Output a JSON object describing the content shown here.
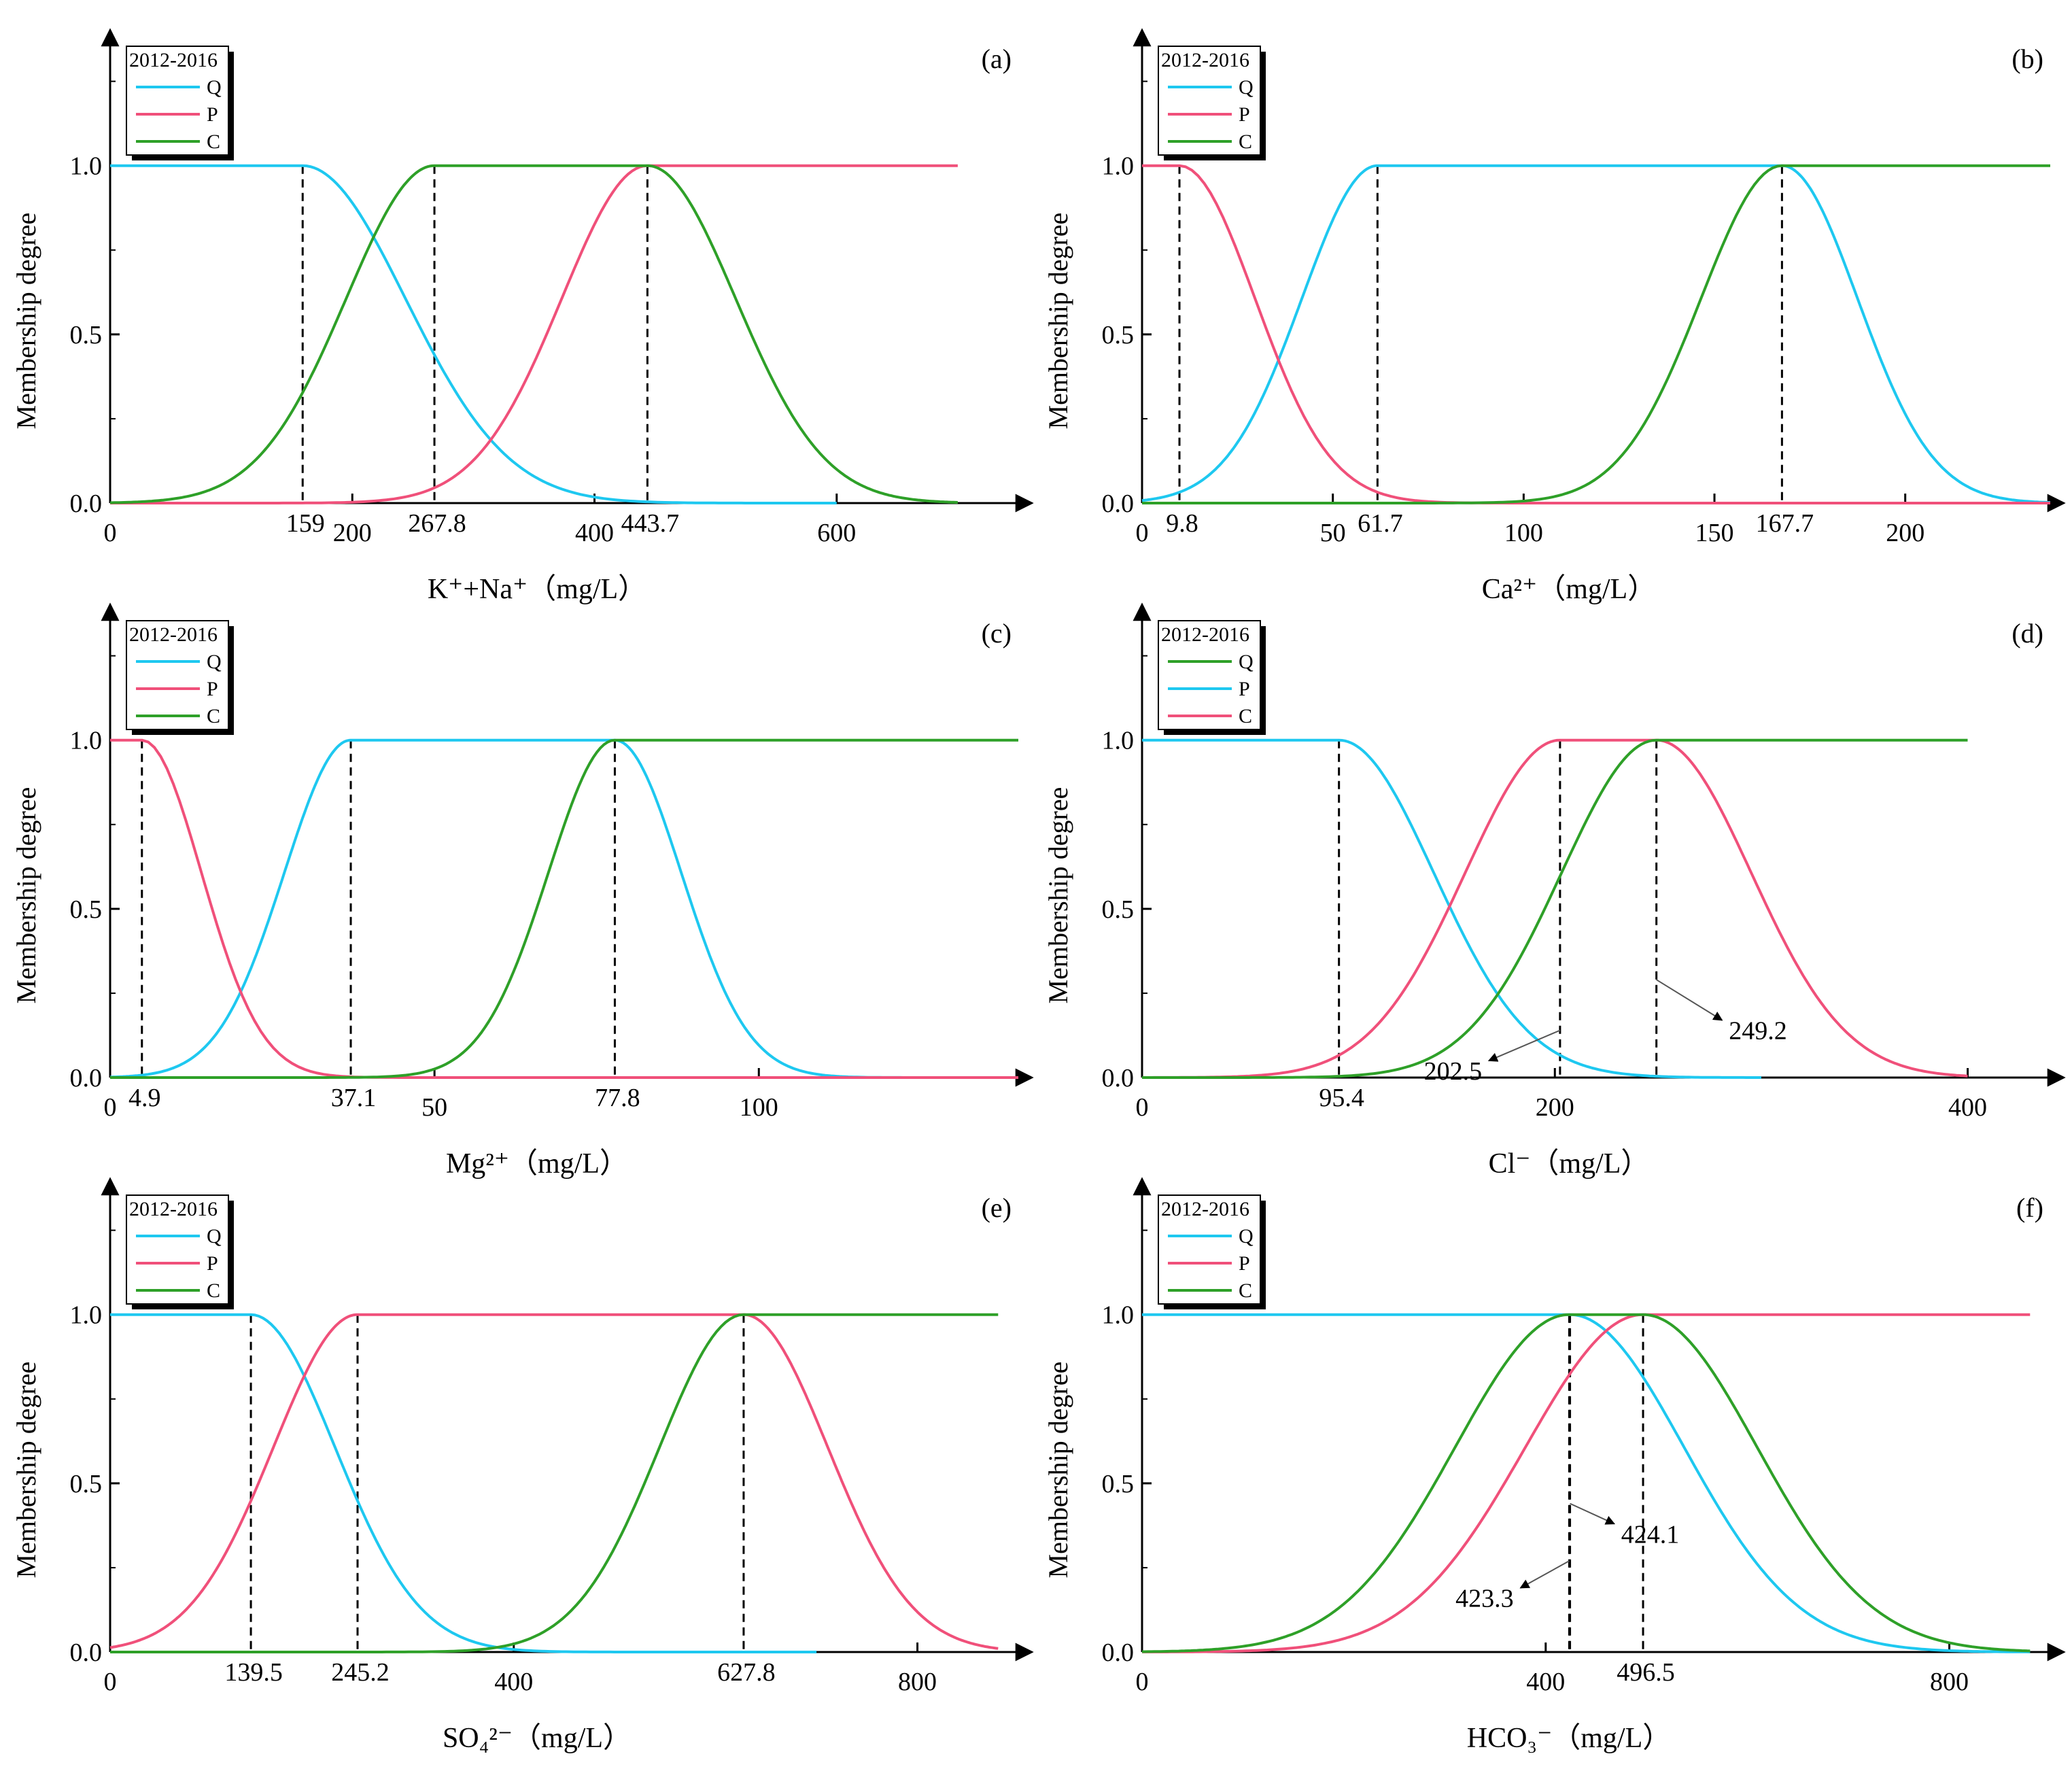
{
  "y_axis_label": "Membership degree",
  "legend_title": "2012-2016",
  "colors": {
    "Q": "#1EC8F0",
    "P": "#F0507A",
    "C": "#2EA028",
    "axis": "#000000",
    "dash": "#000000"
  },
  "chart_data": [
    {
      "id": "a",
      "panel_label": "(a)",
      "type": "line",
      "xlabel": "K⁺+Na⁺（mg/L）",
      "xlim": [
        0,
        750
      ],
      "ylim": [
        0,
        1.35
      ],
      "xticks": [
        {
          "v": 0,
          "t": "0"
        },
        {
          "v": 200,
          "t": "200"
        },
        {
          "v": 400,
          "t": "400"
        },
        {
          "v": 600,
          "t": "600"
        }
      ],
      "yticks": [
        {
          "v": 0,
          "t": "0.0"
        },
        {
          "v": 0.5,
          "t": "0.5"
        },
        {
          "v": 1,
          "t": "1.0"
        }
      ],
      "threshold_ticks": [
        {
          "v": 159,
          "t": "159"
        },
        {
          "v": 267.8,
          "t": "267.8"
        },
        {
          "v": 443.7,
          "t": "443.7"
        }
      ],
      "dashed_lines": [
        159,
        267.8,
        443.7
      ],
      "legend": [
        {
          "name": "Q",
          "color": "#1EC8F0"
        },
        {
          "name": "P",
          "color": "#F0507A"
        },
        {
          "name": "C",
          "color": "#2EA028"
        }
      ],
      "series": [
        {
          "name": "Q",
          "color": "#1EC8F0",
          "segments": [
            {
              "type": "flat",
              "x0": 0,
              "x1": 159,
              "y": 1
            },
            {
              "type": "gauss",
              "x0": 159,
              "x1": 600,
              "c": 159,
              "s": 120
            }
          ]
        },
        {
          "name": "P",
          "color": "#F0507A",
          "segments": [
            {
              "type": "gauss",
              "x0": 0,
              "x1": 443.7,
              "c": 443.7,
              "s": 100
            },
            {
              "type": "flat",
              "x0": 443.7,
              "x1": 700,
              "y": 1
            }
          ]
        },
        {
          "name": "C",
          "color": "#2EA028",
          "segments": [
            {
              "type": "gauss",
              "x0": 0,
              "x1": 267.8,
              "c": 267.8,
              "s": 103
            },
            {
              "type": "flat",
              "x0": 267.8,
              "x1": 443.7,
              "y": 1
            },
            {
              "type": "gauss",
              "x0": 443.7,
              "x1": 700,
              "c": 443.7,
              "s": 103
            }
          ]
        }
      ],
      "annotations": []
    },
    {
      "id": "b",
      "panel_label": "(b)",
      "type": "line",
      "xlabel": "Ca²⁺（mg/L）",
      "xlim": [
        0,
        238
      ],
      "ylim": [
        0,
        1.35
      ],
      "xticks": [
        {
          "v": 0,
          "t": "0"
        },
        {
          "v": 50,
          "t": "50"
        },
        {
          "v": 100,
          "t": "100"
        },
        {
          "v": 150,
          "t": "150"
        },
        {
          "v": 200,
          "t": "200"
        }
      ],
      "yticks": [
        {
          "v": 0,
          "t": "0.0"
        },
        {
          "v": 0.5,
          "t": "0.5"
        },
        {
          "v": 1,
          "t": "1.0"
        }
      ],
      "threshold_ticks": [
        {
          "v": 9.8,
          "t": "9.8"
        },
        {
          "v": 61.7,
          "t": "61.7"
        },
        {
          "v": 167.7,
          "t": "167.7"
        }
      ],
      "dashed_lines": [
        9.8,
        61.7,
        167.7
      ],
      "legend": [
        {
          "name": "Q",
          "color": "#1EC8F0"
        },
        {
          "name": "P",
          "color": "#F0507A"
        },
        {
          "name": "C",
          "color": "#2EA028"
        }
      ],
      "series": [
        {
          "name": "Q",
          "color": "#1EC8F0",
          "segments": [
            {
              "type": "gauss",
              "x0": 0,
              "x1": 61.7,
              "c": 61.7,
              "s": 28
            },
            {
              "type": "flat",
              "x0": 61.7,
              "x1": 167.7,
              "y": 1
            },
            {
              "type": "gauss",
              "x0": 167.7,
              "x1": 238,
              "c": 167.7,
              "s": 28
            }
          ]
        },
        {
          "name": "P",
          "color": "#F0507A",
          "segments": [
            {
              "type": "flat",
              "x0": 0,
              "x1": 9.8,
              "y": 1
            },
            {
              "type": "gauss",
              "x0": 9.8,
              "x1": 238,
              "c": 9.8,
              "s": 28
            }
          ]
        },
        {
          "name": "C",
          "color": "#2EA028",
          "segments": [
            {
              "type": "gauss",
              "x0": 0,
              "x1": 167.7,
              "c": 167.7,
              "s": 30
            },
            {
              "type": "flat",
              "x0": 167.7,
              "x1": 238,
              "y": 1
            }
          ]
        }
      ],
      "annotations": []
    },
    {
      "id": "c",
      "panel_label": "(c)",
      "type": "line",
      "xlabel": "Mg²⁺（mg/L）",
      "xlim": [
        0,
        140
      ],
      "ylim": [
        0,
        1.35
      ],
      "xticks": [
        {
          "v": 0,
          "t": "0"
        },
        {
          "v": 50,
          "t": "50"
        },
        {
          "v": 100,
          "t": "100"
        }
      ],
      "yticks": [
        {
          "v": 0,
          "t": "0.0"
        },
        {
          "v": 0.5,
          "t": "0.5"
        },
        {
          "v": 1,
          "t": "1.0"
        }
      ],
      "threshold_ticks": [
        {
          "v": 4.9,
          "t": "4.9"
        },
        {
          "v": 37.1,
          "t": "37.1"
        },
        {
          "v": 77.8,
          "t": "77.8"
        }
      ],
      "dashed_lines": [
        4.9,
        37.1,
        77.8
      ],
      "legend": [
        {
          "name": "Q",
          "color": "#1EC8F0"
        },
        {
          "name": "P",
          "color": "#F0507A"
        },
        {
          "name": "C",
          "color": "#2EA028"
        }
      ],
      "series": [
        {
          "name": "Q",
          "color": "#1EC8F0",
          "segments": [
            {
              "type": "gauss",
              "x0": 0,
              "x1": 37.1,
              "c": 37.1,
              "s": 14.5
            },
            {
              "type": "flat",
              "x0": 37.1,
              "x1": 77.8,
              "y": 1
            },
            {
              "type": "gauss",
              "x0": 77.8,
              "x1": 140,
              "c": 77.8,
              "s": 14.5
            }
          ]
        },
        {
          "name": "P",
          "color": "#F0507A",
          "segments": [
            {
              "type": "flat",
              "x0": 0,
              "x1": 4.9,
              "y": 1
            },
            {
              "type": "gauss",
              "x0": 4.9,
              "x1": 140,
              "c": 4.9,
              "s": 13
            }
          ]
        },
        {
          "name": "C",
          "color": "#2EA028",
          "segments": [
            {
              "type": "gauss",
              "x0": 0,
              "x1": 77.8,
              "c": 77.8,
              "s": 14.5
            },
            {
              "type": "flat",
              "x0": 77.8,
              "x1": 140,
              "y": 1
            }
          ]
        }
      ],
      "annotations": []
    },
    {
      "id": "d",
      "panel_label": "(d)",
      "type": "line",
      "xlabel": "Cl⁻（mg/L）",
      "xlim": [
        0,
        440
      ],
      "ylim": [
        0,
        1.35
      ],
      "xticks": [
        {
          "v": 0,
          "t": "0"
        },
        {
          "v": 200,
          "t": "200"
        },
        {
          "v": 400,
          "t": "400"
        }
      ],
      "yticks": [
        {
          "v": 0,
          "t": "0.0"
        },
        {
          "v": 0.5,
          "t": "0.5"
        },
        {
          "v": 1,
          "t": "1.0"
        }
      ],
      "threshold_ticks": [
        {
          "v": 95.4,
          "t": "95.4"
        }
      ],
      "dashed_lines": [
        95.4,
        202.5,
        249.2
      ],
      "legend": [
        {
          "name": "Q",
          "color": "#2EA028"
        },
        {
          "name": "P",
          "color": "#1EC8F0"
        },
        {
          "name": "C",
          "color": "#F0507A"
        }
      ],
      "series": [
        {
          "name": "P",
          "color": "#1EC8F0",
          "segments": [
            {
              "type": "flat",
              "x0": 0,
              "x1": 95.4,
              "y": 1
            },
            {
              "type": "gauss",
              "x0": 95.4,
              "x1": 300,
              "c": 95.4,
              "s": 65
            }
          ]
        },
        {
          "name": "C",
          "color": "#F0507A",
          "segments": [
            {
              "type": "gauss",
              "x0": 0,
              "x1": 202.5,
              "c": 202.5,
              "s": 65
            },
            {
              "type": "flat",
              "x0": 202.5,
              "x1": 249.2,
              "y": 1
            },
            {
              "type": "gauss",
              "x0": 249.2,
              "x1": 400,
              "c": 249.2,
              "s": 65
            }
          ]
        },
        {
          "name": "Q",
          "color": "#2EA028",
          "segments": [
            {
              "type": "gauss",
              "x0": 0,
              "x1": 249.2,
              "c": 249.2,
              "s": 65
            },
            {
              "type": "flat",
              "x0": 249.2,
              "x1": 400,
              "y": 1
            }
          ]
        }
      ],
      "annotations": [
        {
          "text": "202.5",
          "x": 202.5,
          "y": 0.14,
          "tx": 168,
          "ty": 0.05
        },
        {
          "text": "249.2",
          "x": 249.2,
          "y": 0.29,
          "tx": 281,
          "ty": 0.17
        }
      ]
    },
    {
      "id": "e",
      "panel_label": "(e)",
      "type": "line",
      "xlabel": "SO₄²⁻（mg/L）",
      "xlim": [
        0,
        900
      ],
      "ylim": [
        0,
        1.35
      ],
      "xticks": [
        {
          "v": 0,
          "t": "0"
        },
        {
          "v": 400,
          "t": "400"
        },
        {
          "v": 800,
          "t": "800"
        }
      ],
      "yticks": [
        {
          "v": 0,
          "t": "0.0"
        },
        {
          "v": 0.5,
          "t": "0.5"
        },
        {
          "v": 1,
          "t": "1.0"
        }
      ],
      "threshold_ticks": [
        {
          "v": 139.5,
          "t": "139.5"
        },
        {
          "v": 245.2,
          "t": "245.2"
        },
        {
          "v": 627.8,
          "t": "627.8"
        }
      ],
      "dashed_lines": [
        139.5,
        245.2,
        627.8
      ],
      "legend": [
        {
          "name": "Q",
          "color": "#1EC8F0"
        },
        {
          "name": "P",
          "color": "#F0507A"
        },
        {
          "name": "C",
          "color": "#2EA028"
        }
      ],
      "series": [
        {
          "name": "Q",
          "color": "#1EC8F0",
          "segments": [
            {
              "type": "flat",
              "x0": 0,
              "x1": 139.5,
              "y": 1
            },
            {
              "type": "gauss",
              "x0": 139.5,
              "x1": 700,
              "c": 139.5,
              "s": 118
            }
          ]
        },
        {
          "name": "P",
          "color": "#F0507A",
          "segments": [
            {
              "type": "gauss",
              "x0": 0,
              "x1": 245.2,
              "c": 245.2,
              "s": 118
            },
            {
              "type": "flat",
              "x0": 245.2,
              "x1": 627.8,
              "y": 1
            },
            {
              "type": "gauss",
              "x0": 627.8,
              "x1": 880,
              "c": 627.8,
              "s": 118
            }
          ]
        },
        {
          "name": "C",
          "color": "#2EA028",
          "segments": [
            {
              "type": "gauss",
              "x0": 0,
              "x1": 627.8,
              "c": 627.8,
              "s": 118
            },
            {
              "type": "flat",
              "x0": 627.8,
              "x1": 880,
              "y": 1
            }
          ]
        }
      ],
      "annotations": []
    },
    {
      "id": "f",
      "panel_label": "(f)",
      "type": "line",
      "xlabel": "HCO₃⁻（mg/L）",
      "xlim": [
        0,
        900
      ],
      "ylim": [
        0,
        1.35
      ],
      "xticks": [
        {
          "v": 0,
          "t": "0"
        },
        {
          "v": 400,
          "t": "400"
        },
        {
          "v": 800,
          "t": "800"
        }
      ],
      "yticks": [
        {
          "v": 0,
          "t": "0.0"
        },
        {
          "v": 0.5,
          "t": "0.5"
        },
        {
          "v": 1,
          "t": "1.0"
        }
      ],
      "threshold_ticks": [
        {
          "v": 496.5,
          "t": "496.5"
        }
      ],
      "dashed_lines": [
        423.3,
        424.1,
        496.5
      ],
      "legend": [
        {
          "name": "Q",
          "color": "#1EC8F0"
        },
        {
          "name": "P",
          "color": "#F0507A"
        },
        {
          "name": "C",
          "color": "#2EA028"
        }
      ],
      "series": [
        {
          "name": "Q",
          "color": "#1EC8F0",
          "segments": [
            {
              "type": "flat",
              "x0": 0,
              "x1": 424.1,
              "y": 1
            },
            {
              "type": "gauss",
              "x0": 424.1,
              "x1": 880,
              "c": 424.1,
              "s": 160
            }
          ]
        },
        {
          "name": "P",
          "color": "#F0507A",
          "segments": [
            {
              "type": "gauss",
              "x0": 0,
              "x1": 496.5,
              "c": 496.5,
              "s": 165
            },
            {
              "type": "flat",
              "x0": 496.5,
              "x1": 880,
              "y": 1
            }
          ]
        },
        {
          "name": "C",
          "color": "#2EA028",
          "segments": [
            {
              "type": "gauss",
              "x0": 0,
              "x1": 423.3,
              "c": 423.3,
              "s": 160
            },
            {
              "type": "flat",
              "x0": 423.3,
              "x1": 496.5,
              "y": 1
            },
            {
              "type": "gauss",
              "x0": 496.5,
              "x1": 880,
              "c": 496.5,
              "s": 160
            }
          ]
        }
      ],
      "annotations": [
        {
          "text": "424.1",
          "x": 424.1,
          "y": 0.44,
          "tx": 468,
          "ty": 0.38
        },
        {
          "text": "423.3",
          "x": 423.3,
          "y": 0.27,
          "tx": 375,
          "ty": 0.19
        }
      ]
    }
  ]
}
